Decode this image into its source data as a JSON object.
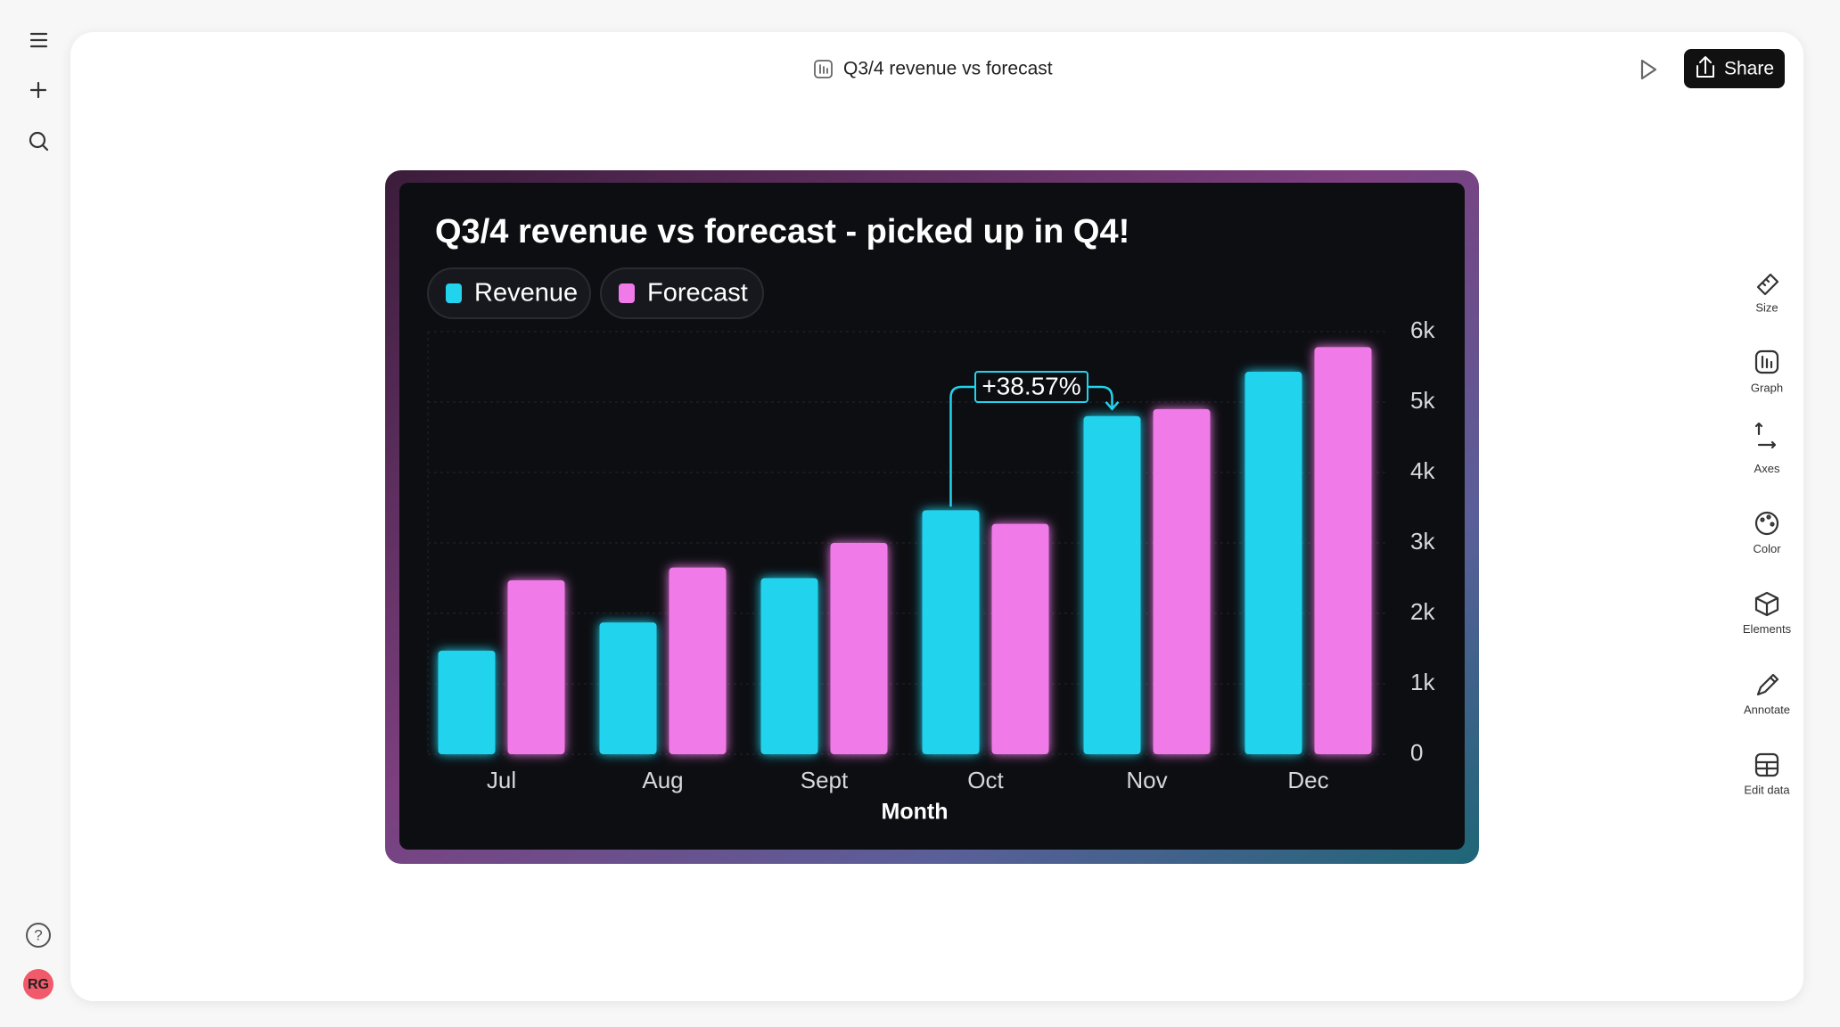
{
  "header": {
    "title": "Q3/4 revenue vs forecast",
    "share": "Share"
  },
  "toolbar": [
    "Size",
    "Graph",
    "Axes",
    "Color",
    "Elements",
    "Annotate",
    "Edit data"
  ],
  "help": "?",
  "user": {
    "initials": "RG"
  },
  "chart_data": {
    "type": "bar",
    "title": "Q3/4 revenue vs forecast - picked up in Q4!",
    "categories": [
      "Jul",
      "Aug",
      "Sept",
      "Oct",
      "Nov",
      "Dec"
    ],
    "series": [
      {
        "name": "Revenue",
        "color": "#22d3ee",
        "values": [
          1470,
          1870,
          2500,
          3464,
          4800,
          5430
        ]
      },
      {
        "name": "Forecast",
        "color": "#f07ae8",
        "values": [
          2470,
          2650,
          3000,
          3270,
          4900,
          5780
        ]
      }
    ],
    "xlabel": "Month",
    "ylim": [
      0,
      6000
    ],
    "yticks": [
      0,
      {
        "value": 1000,
        "label": "1k"
      },
      {
        "value": 2000,
        "label": "2k"
      },
      {
        "value": 3000,
        "label": "3k"
      },
      {
        "value": 4000,
        "label": "4k"
      },
      {
        "value": 5000,
        "label": "5k"
      },
      {
        "value": 6000,
        "label": "6k"
      }
    ],
    "grid": true,
    "annotation": {
      "text": "+38.57%"
    }
  }
}
